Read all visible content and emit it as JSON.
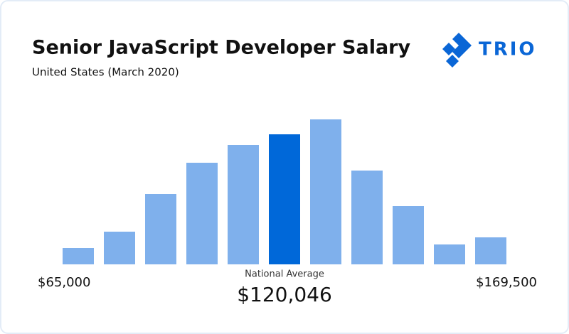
{
  "chart_data": {
    "type": "bar",
    "title": "Senior JavaScript Developer Salary",
    "subtitle": "United States (March 2020)",
    "brand": "TRIO",
    "values": [
      23,
      46,
      99,
      143,
      168,
      183,
      204,
      132,
      82,
      28,
      38
    ],
    "colors": [
      "#7fb0ec",
      "#7fb0ec",
      "#7fb0ec",
      "#7fb0ec",
      "#7fb0ec",
      "#0068d9",
      "#7fb0ec",
      "#7fb0ec",
      "#7fb0ec",
      "#7fb0ec",
      "#7fb0ec"
    ],
    "annotations": {
      "min_label": "$65,000",
      "max_label": "$169,500",
      "average_caption": "National Average",
      "average_value": "$120,046"
    }
  }
}
